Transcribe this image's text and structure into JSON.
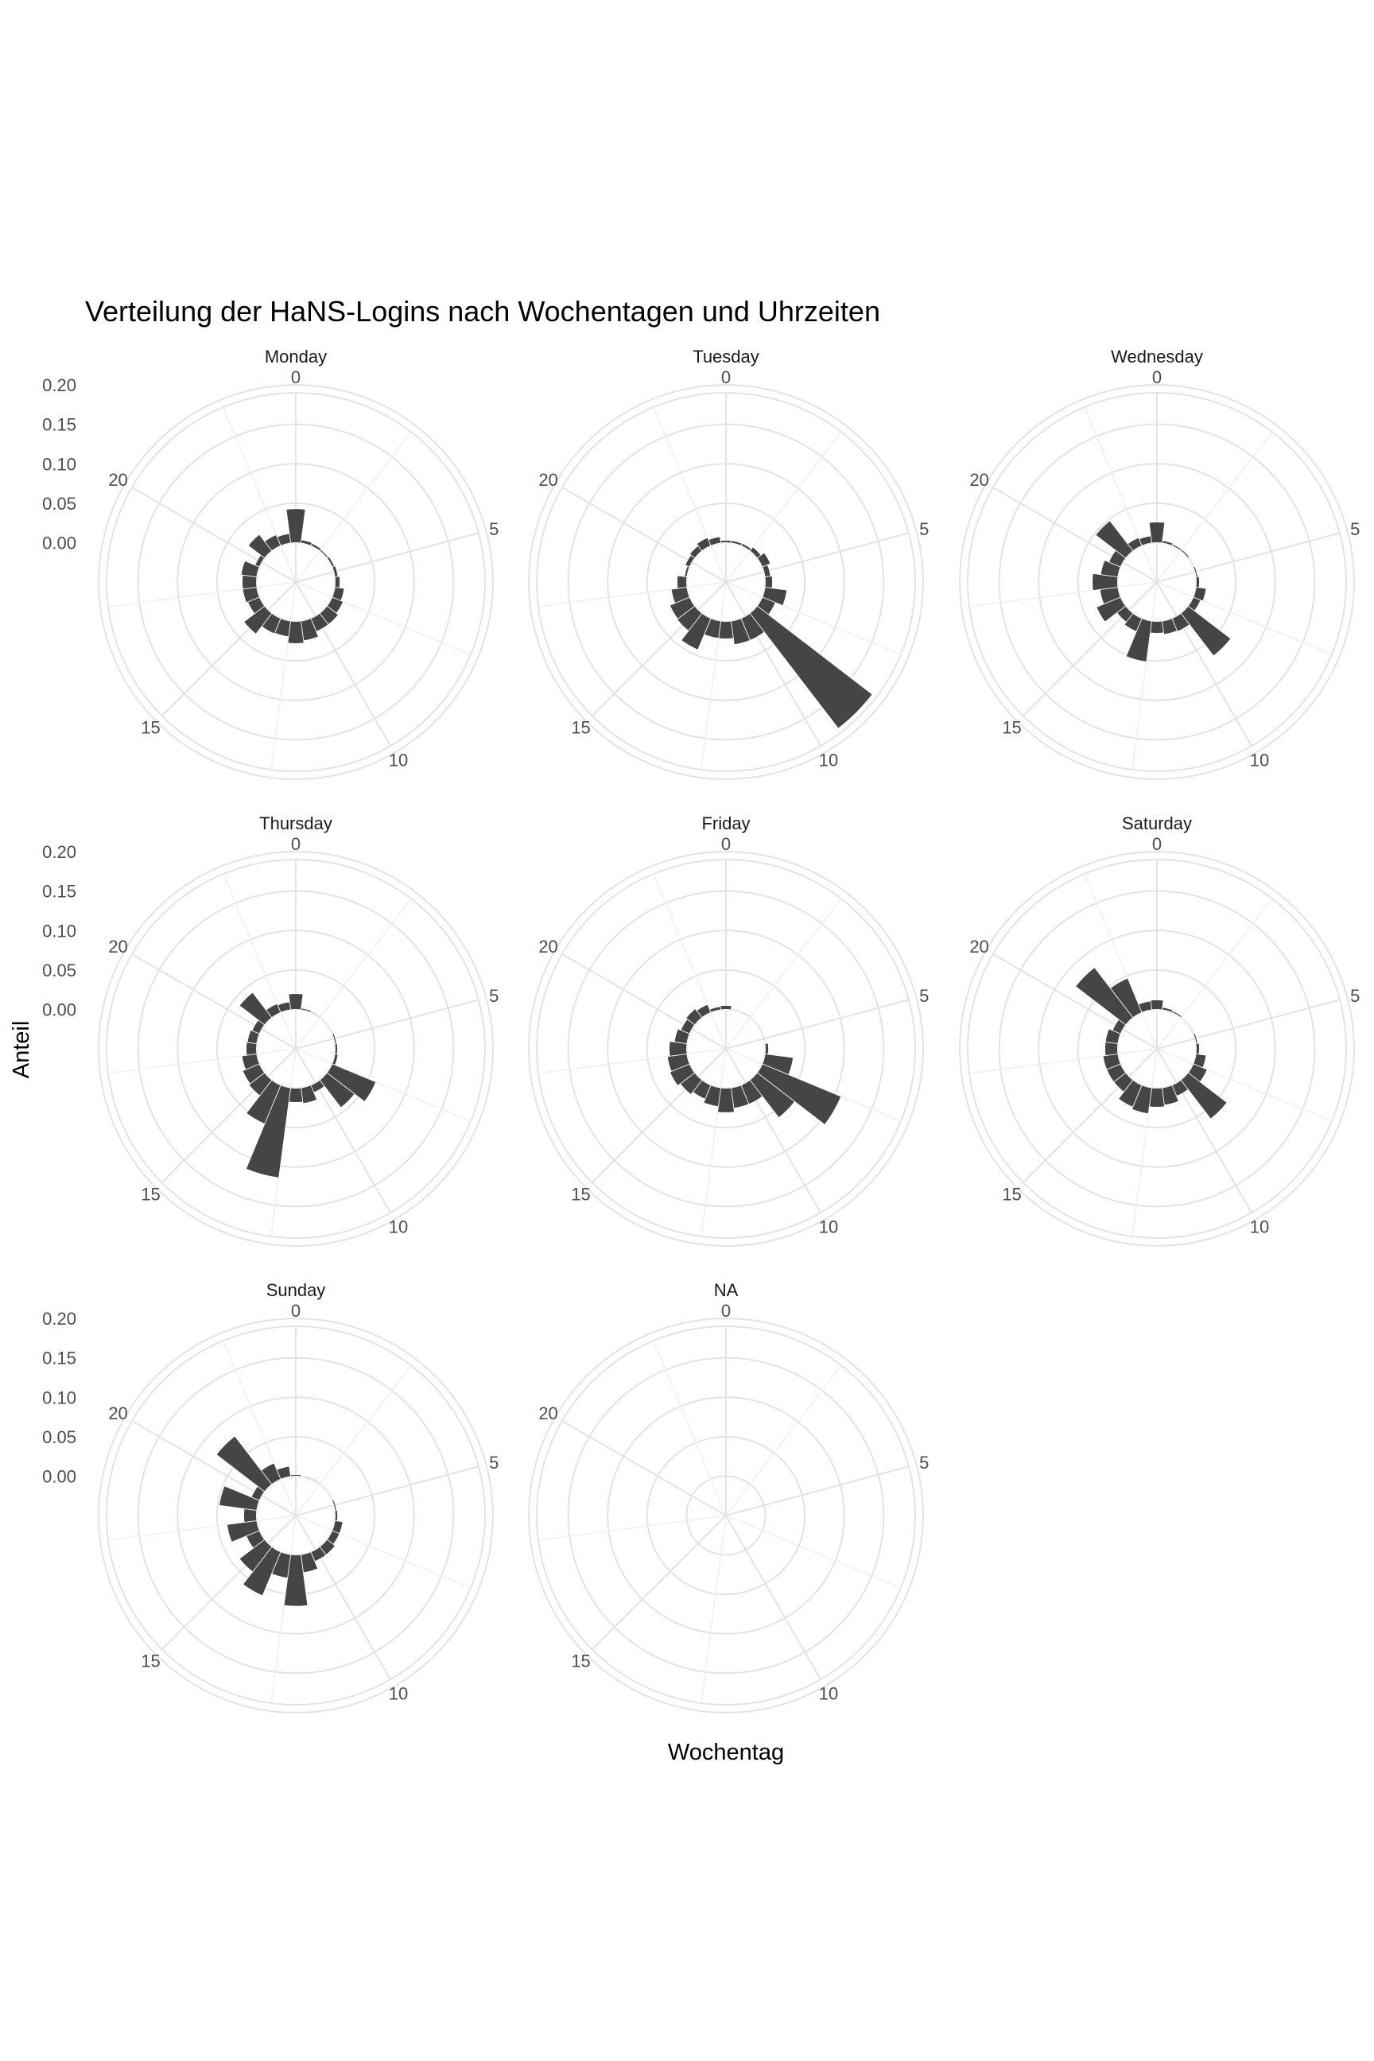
{
  "chart_data": {
    "type": "bar",
    "subtype": "polar-faceted",
    "title": "Verteilung der HaNS-Logins nach Wochentagen und Uhrzeiten",
    "xlabel": "Wochentag",
    "ylabel": "Anteil",
    "theta_ticks": [
      "0",
      "5",
      "10",
      "15",
      "20"
    ],
    "r_ticks": [
      "0.00",
      "0.05",
      "0.10",
      "0.15",
      "0.20"
    ],
    "r_tick_values": [
      0,
      0.05,
      0.1,
      0.15,
      0.2
    ],
    "ylim": [
      -0.05,
      0.19
    ],
    "hours": [
      0,
      1,
      2,
      3,
      4,
      5,
      6,
      7,
      8,
      9,
      10,
      11,
      12,
      13,
      14,
      15,
      16,
      17,
      18,
      19,
      20,
      21,
      22,
      23
    ],
    "grid": true,
    "bar_color": "#454545",
    "panel_grid_color": "#e3e3e3",
    "facets": [
      {
        "name": "Monday",
        "values": [
          0.043,
          0.004,
          0.003,
          0.002,
          0.003,
          0.004,
          0.006,
          0.012,
          0.015,
          0.018,
          0.018,
          0.025,
          0.028,
          0.02,
          0.021,
          0.033,
          0.016,
          0.018,
          0.018,
          0.02,
          0.006,
          0.026,
          0.015,
          0.012
        ]
      },
      {
        "name": "Tuesday",
        "values": [
          0.003,
          0.003,
          0.003,
          0.006,
          0.011,
          0.007,
          0.009,
          0.028,
          0.018,
          0.184,
          0.03,
          0.03,
          0.022,
          0.022,
          0.043,
          0.028,
          0.027,
          0.02,
          0.012,
          0.003,
          0.006,
          0.008,
          0.011,
          0.008
        ]
      },
      {
        "name": "Wednesday",
        "values": [
          0.026,
          0.003,
          0.002,
          0.002,
          0.001,
          0.002,
          0.004,
          0.013,
          0.01,
          0.068,
          0.018,
          0.017,
          0.015,
          0.052,
          0.018,
          0.014,
          0.033,
          0.023,
          0.032,
          0.022,
          0.016,
          0.048,
          0.011,
          0.009
        ]
      },
      {
        "name": "Thursday",
        "values": [
          0.02,
          0.002,
          0.001,
          0.001,
          0.001,
          0.002,
          0.003,
          0.004,
          0.06,
          0.044,
          0.01,
          0.02,
          0.018,
          0.115,
          0.053,
          0.025,
          0.023,
          0.019,
          0.013,
          0.012,
          0.01,
          0.04,
          0.012,
          0.01
        ]
      },
      {
        "name": "Friday",
        "values": [
          0.005,
          0.001,
          0.001,
          0.001,
          0.001,
          0.001,
          0.004,
          0.036,
          0.108,
          0.06,
          0.026,
          0.026,
          0.031,
          0.024,
          0.019,
          0.023,
          0.027,
          0.025,
          0.022,
          0.016,
          0.012,
          0.014,
          0.011,
          0.004
        ]
      },
      {
        "name": "Saturday",
        "values": [
          0.012,
          0.003,
          0.002,
          0.001,
          0.001,
          0.002,
          0.004,
          0.013,
          0.019,
          0.062,
          0.015,
          0.022,
          0.024,
          0.033,
          0.03,
          0.019,
          0.019,
          0.019,
          0.016,
          0.016,
          0.011,
          0.08,
          0.047,
          0.011
        ]
      },
      {
        "name": "Sunday",
        "values": [
          0.002,
          0.001,
          0.001,
          0.001,
          0.001,
          0.002,
          0.003,
          0.01,
          0.01,
          0.013,
          0.013,
          0.023,
          0.065,
          0.03,
          0.06,
          0.04,
          0.018,
          0.038,
          0.016,
          0.048,
          0.011,
          0.077,
          0.022,
          0.013
        ]
      },
      {
        "name": "NA",
        "values": [
          0,
          0,
          0,
          0,
          0,
          0,
          0,
          0,
          0,
          0,
          0,
          0,
          0,
          0,
          0,
          0,
          0,
          0,
          0,
          0,
          0,
          0,
          0,
          0
        ]
      }
    ]
  }
}
